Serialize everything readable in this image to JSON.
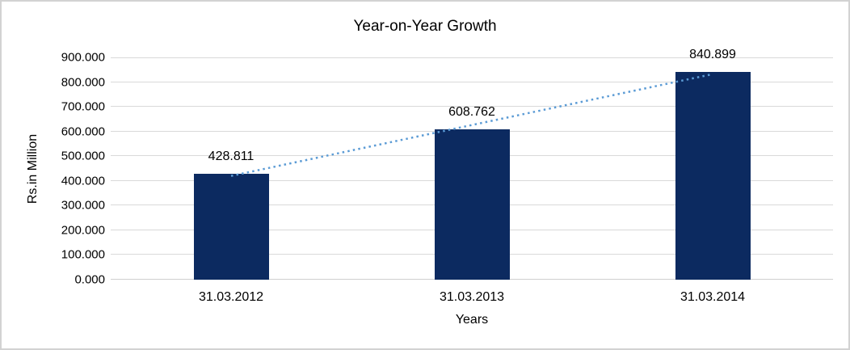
{
  "chart_data": {
    "type": "bar",
    "title": "Year-on-Year Growth",
    "categories": [
      "31.03.2012",
      "31.03.2013",
      "31.03.2014"
    ],
    "values": [
      428.811,
      608.762,
      840.899
    ],
    "data_labels": [
      "428.811",
      "608.762",
      "840.899"
    ],
    "xlabel": "Years",
    "ylabel": "Rs.in Million",
    "ylim": [
      0,
      900
    ],
    "ytick_step": 100,
    "ytick_labels": [
      "0.000",
      "100.000",
      "200.000",
      "300.000",
      "400.000",
      "500.000",
      "600.000",
      "700.000",
      "800.000",
      "900.000"
    ],
    "grid": true,
    "legend": "none",
    "bar_color": "#0c2a60",
    "gridline_color": "#d9d9d9",
    "axisline_color": "#cfcfcf",
    "trendline": {
      "type": "linear",
      "style": "dotted",
      "color": "#5b9bd5"
    }
  }
}
